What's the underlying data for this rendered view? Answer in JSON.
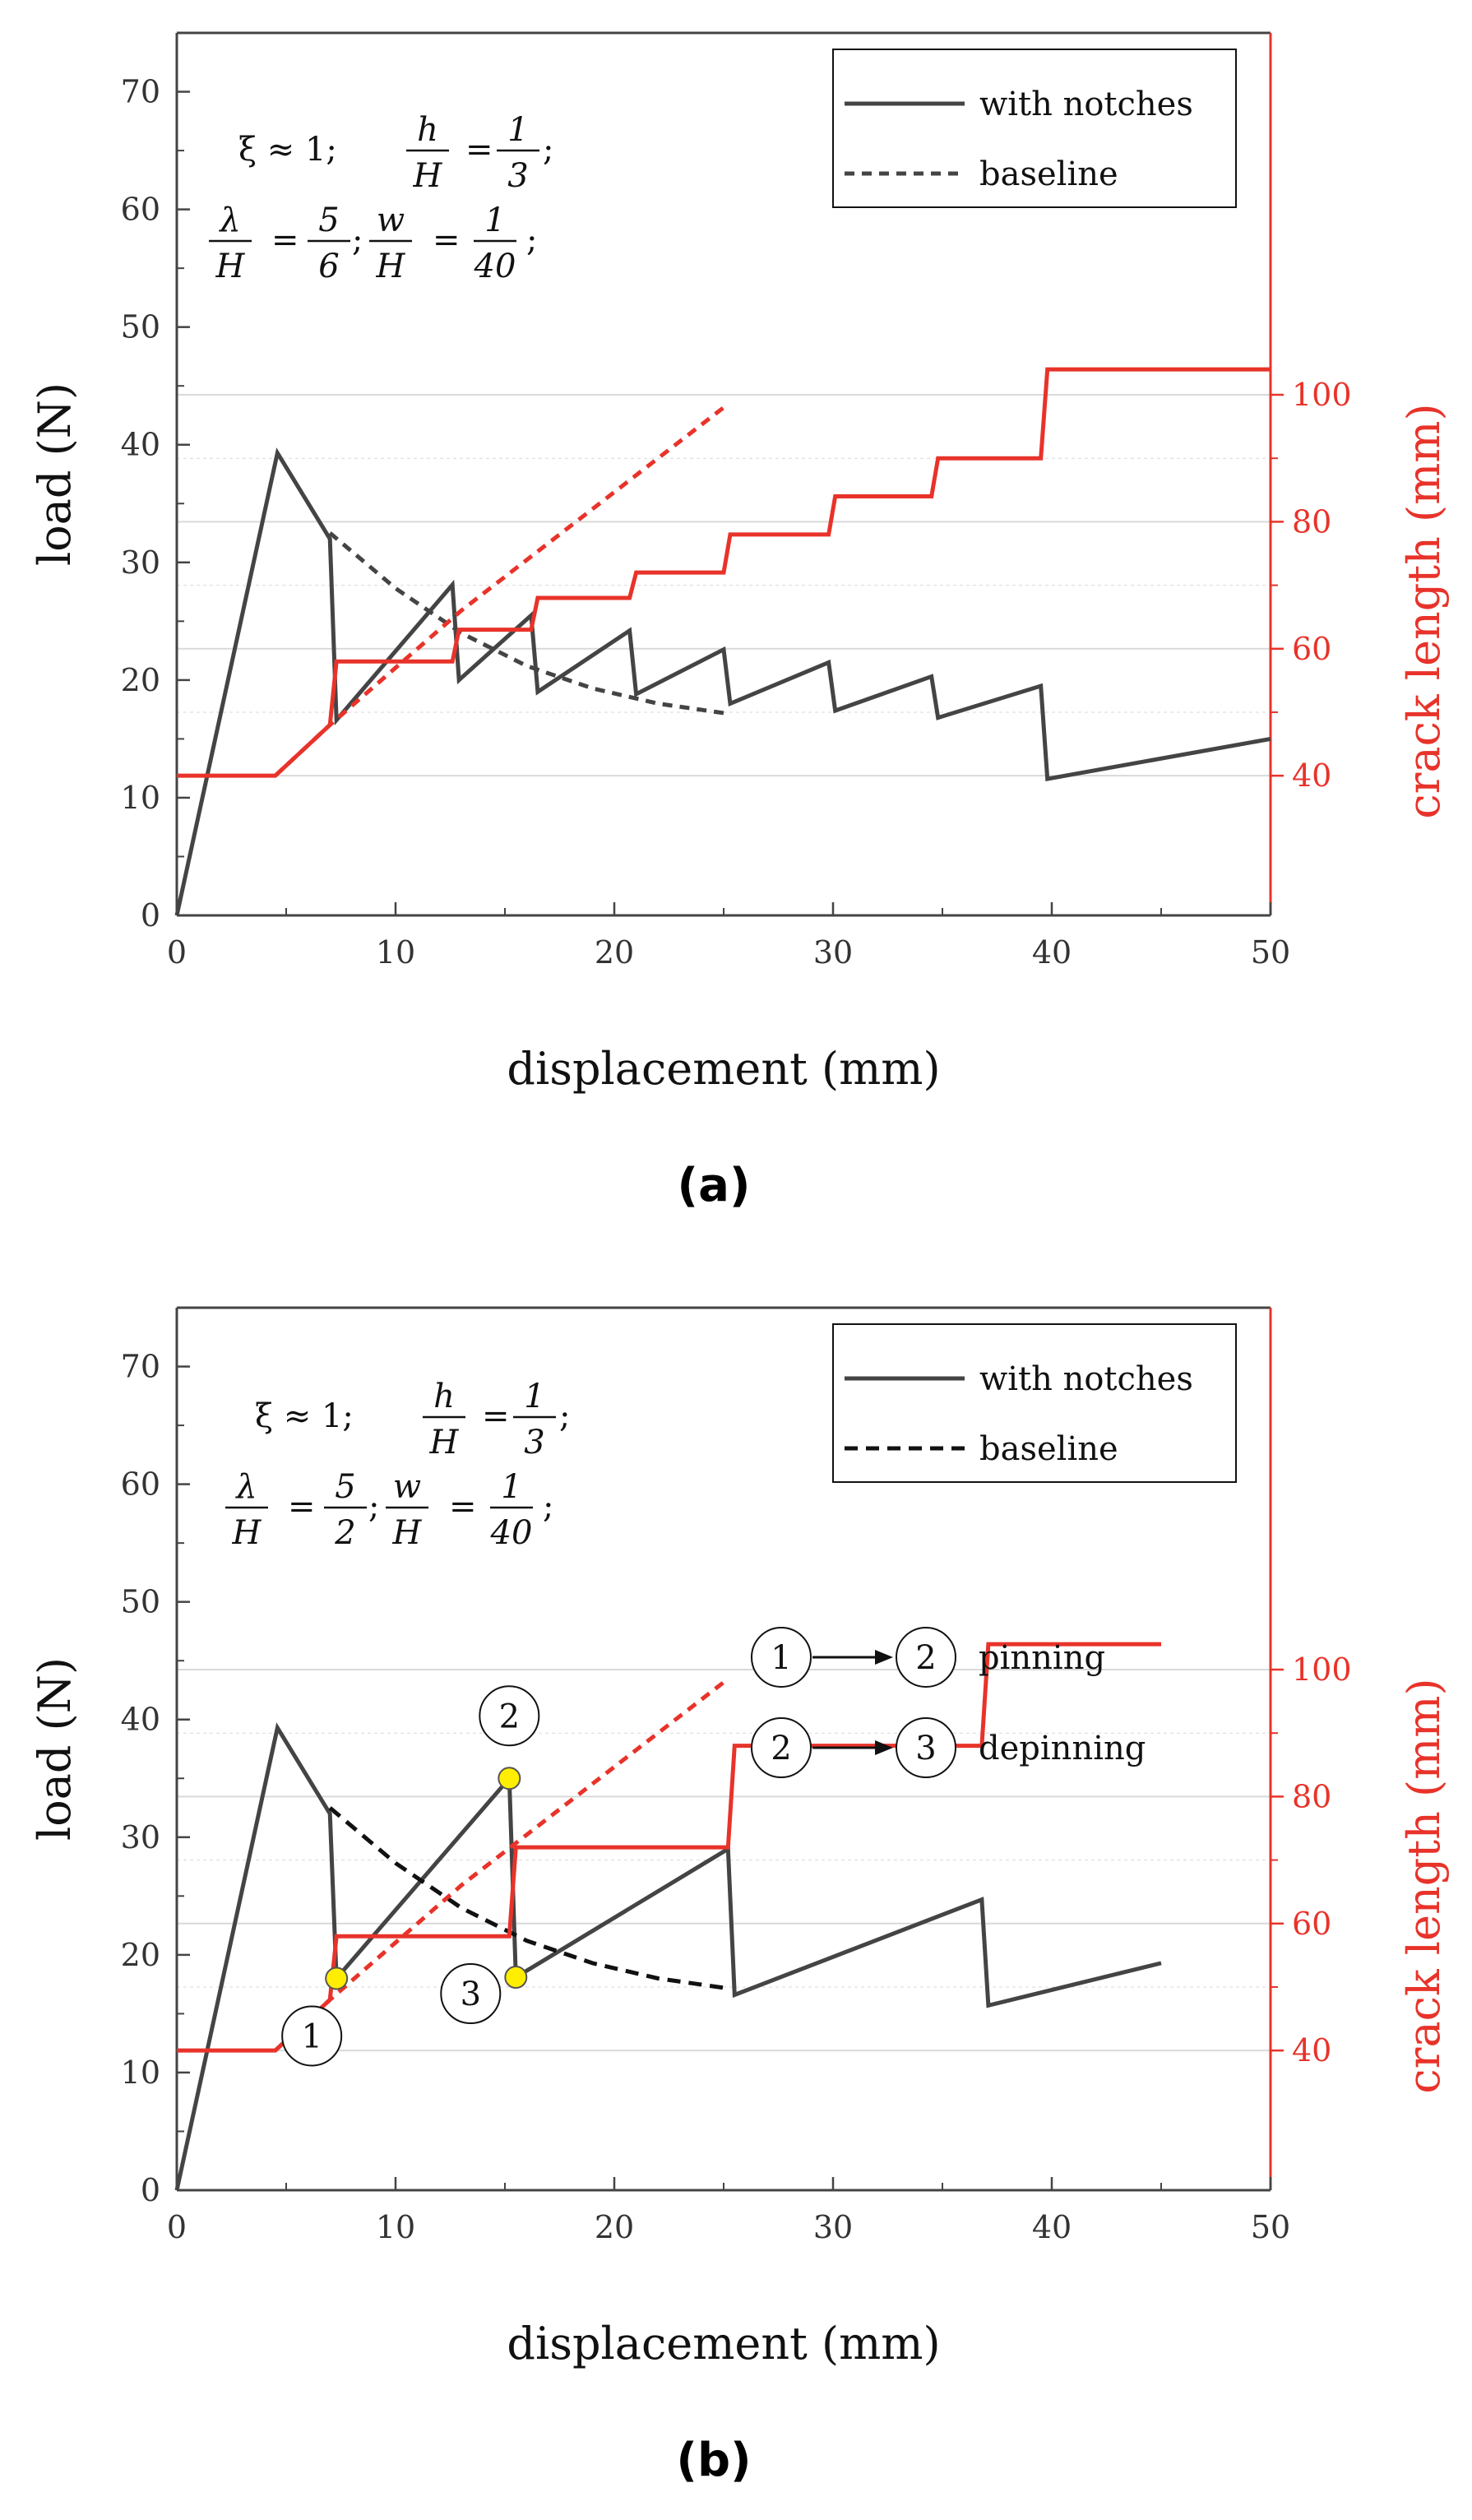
{
  "colors": {
    "load": "#444444",
    "crack": "#e8332a",
    "grid": "#d9d9d9",
    "marker": "#ffee00"
  },
  "chart_data": [
    {
      "type": "line",
      "panel_label": "(a)",
      "panel_letter": "a",
      "xlabel": "displacement (mm)",
      "ylabel": "load (N)",
      "y2label": "crack length (mm)",
      "xlim": [
        0,
        50
      ],
      "ylim": [
        0,
        75
      ],
      "y2lim": [
        18,
        157
      ],
      "x_ticks": [
        "0",
        "10",
        "20",
        "30",
        "40",
        "50"
      ],
      "y_ticks": [
        "0",
        "10",
        "20",
        "30",
        "40",
        "50",
        "60",
        "70"
      ],
      "y2_ticks": [
        "40",
        "60",
        "80",
        "100"
      ],
      "params": {
        "xi": "ξ ≈ 1;",
        "hH_num": "h",
        "hH_den": "H",
        "hH_eq": "=",
        "hH_val_num": "1",
        "hH_val_den": "3",
        "hH_end": ";",
        "lH_num": "λ",
        "lH_den": "H",
        "lH_eq": "=",
        "lH_val_num": "5",
        "lH_val_den": "6",
        "lH_end": ";",
        "wH_num": "w",
        "wH_den": "H",
        "wH_eq": "=",
        "wH_val_num": "1",
        "wH_val_den": "40",
        "wH_end": ";"
      },
      "legend": [
        "with notches",
        "baseline"
      ],
      "series": [
        {
          "name": "with notches",
          "axis": "left",
          "x": [
            0,
            4.6,
            7.0,
            7.3,
            12.6,
            12.9,
            16.2,
            16.5,
            20.7,
            21.0,
            25.0,
            25.3,
            29.8,
            30.1,
            34.5,
            34.8,
            39.5,
            39.8,
            50
          ],
          "y": [
            0,
            39.3,
            32.0,
            16.6,
            28.1,
            20.0,
            25.5,
            19.0,
            24.2,
            18.8,
            22.6,
            18.0,
            21.5,
            17.4,
            20.3,
            16.8,
            19.5,
            11.6,
            15.0
          ]
        },
        {
          "name": "baseline",
          "axis": "left",
          "dashed": true,
          "x": [
            7.0,
            10,
            13,
            16,
            19,
            22,
            25
          ],
          "y": [
            32.5,
            27.8,
            24.0,
            21.2,
            19.3,
            18.0,
            17.2
          ]
        },
        {
          "name": "crack length (with notches)",
          "axis": "right",
          "x": [
            0,
            4.5,
            7.0,
            7.3,
            12.6,
            12.9,
            16.2,
            16.5,
            20.7,
            21.0,
            25.0,
            25.3,
            29.8,
            30.1,
            34.5,
            34.8,
            39.5,
            39.8,
            50
          ],
          "y": [
            40,
            40,
            48,
            58,
            58,
            63,
            63,
            68,
            68,
            72,
            72,
            78,
            78,
            84,
            84,
            90,
            90,
            104,
            104
          ]
        },
        {
          "name": "crack length (baseline)",
          "axis": "right",
          "dashed": true,
          "x": [
            4.5,
            7.0,
            10,
            13,
            16,
            19,
            22,
            25
          ],
          "y": [
            40,
            48,
            57,
            66,
            74,
            82,
            90,
            98
          ]
        }
      ]
    },
    {
      "type": "line",
      "panel_label": "(b)",
      "panel_letter": "b",
      "xlabel": "displacement (mm)",
      "ylabel": "load (N)",
      "y2label": "crack length (mm)",
      "xlim": [
        0,
        50
      ],
      "ylim": [
        0,
        75
      ],
      "y2lim": [
        18,
        157
      ],
      "x_ticks": [
        "0",
        "10",
        "20",
        "30",
        "40",
        "50"
      ],
      "y_ticks": [
        "0",
        "10",
        "20",
        "30",
        "40",
        "50",
        "60",
        "70"
      ],
      "y2_ticks": [
        "40",
        "60",
        "80",
        "100"
      ],
      "params": {
        "xi": "ξ ≈ 1;",
        "hH_num": "h",
        "hH_den": "H",
        "hH_eq": "=",
        "hH_val_num": "1",
        "hH_val_den": "3",
        "hH_end": ";",
        "lH_num": "λ",
        "lH_den": "H",
        "lH_eq": "=",
        "lH_val_num": "5",
        "lH_val_den": "2",
        "lH_end": ";",
        "wH_num": "w",
        "wH_den": "H",
        "wH_eq": "=",
        "wH_val_num": "1",
        "wH_val_den": "40",
        "wH_end": ";"
      },
      "legend": [
        "with notches",
        "baseline"
      ],
      "annotations": {
        "row1": {
          "from": "1",
          "to": "2",
          "label": "pinning"
        },
        "row2": {
          "from": "2",
          "to": "3",
          "label": "depinning"
        }
      },
      "points": [
        {
          "label": "1",
          "x": 7.3,
          "y": 18.0
        },
        {
          "label": "2",
          "x": 15.2,
          "y": 35.0
        },
        {
          "label": "3",
          "x": 15.5,
          "y": 18.1
        }
      ],
      "series": [
        {
          "name": "with notches",
          "axis": "left",
          "x": [
            0,
            4.6,
            7.0,
            7.3,
            15.2,
            15.5,
            25.2,
            25.5,
            36.8,
            37.1,
            45
          ],
          "y": [
            0,
            39.3,
            32.0,
            18.0,
            35.0,
            18.1,
            29.0,
            16.6,
            24.7,
            15.7,
            19.3
          ]
        },
        {
          "name": "baseline",
          "axis": "left",
          "dashed": true,
          "x": [
            7.0,
            10,
            13,
            16,
            19,
            22,
            25
          ],
          "y": [
            32.5,
            27.8,
            24.0,
            21.2,
            19.3,
            18.0,
            17.2
          ]
        },
        {
          "name": "crack length (with notches)",
          "axis": "right",
          "x": [
            0,
            4.5,
            7.0,
            7.3,
            15.2,
            15.5,
            25.2,
            25.5,
            36.8,
            37.1,
            45
          ],
          "y": [
            40,
            40,
            48,
            58,
            58,
            72,
            72,
            88,
            88,
            104,
            104
          ]
        },
        {
          "name": "crack length (baseline)",
          "axis": "right",
          "dashed": true,
          "x": [
            4.5,
            7.0,
            10,
            13,
            16,
            19,
            22,
            25
          ],
          "y": [
            40,
            48,
            57,
            66,
            74,
            82,
            90,
            98
          ]
        }
      ]
    }
  ]
}
